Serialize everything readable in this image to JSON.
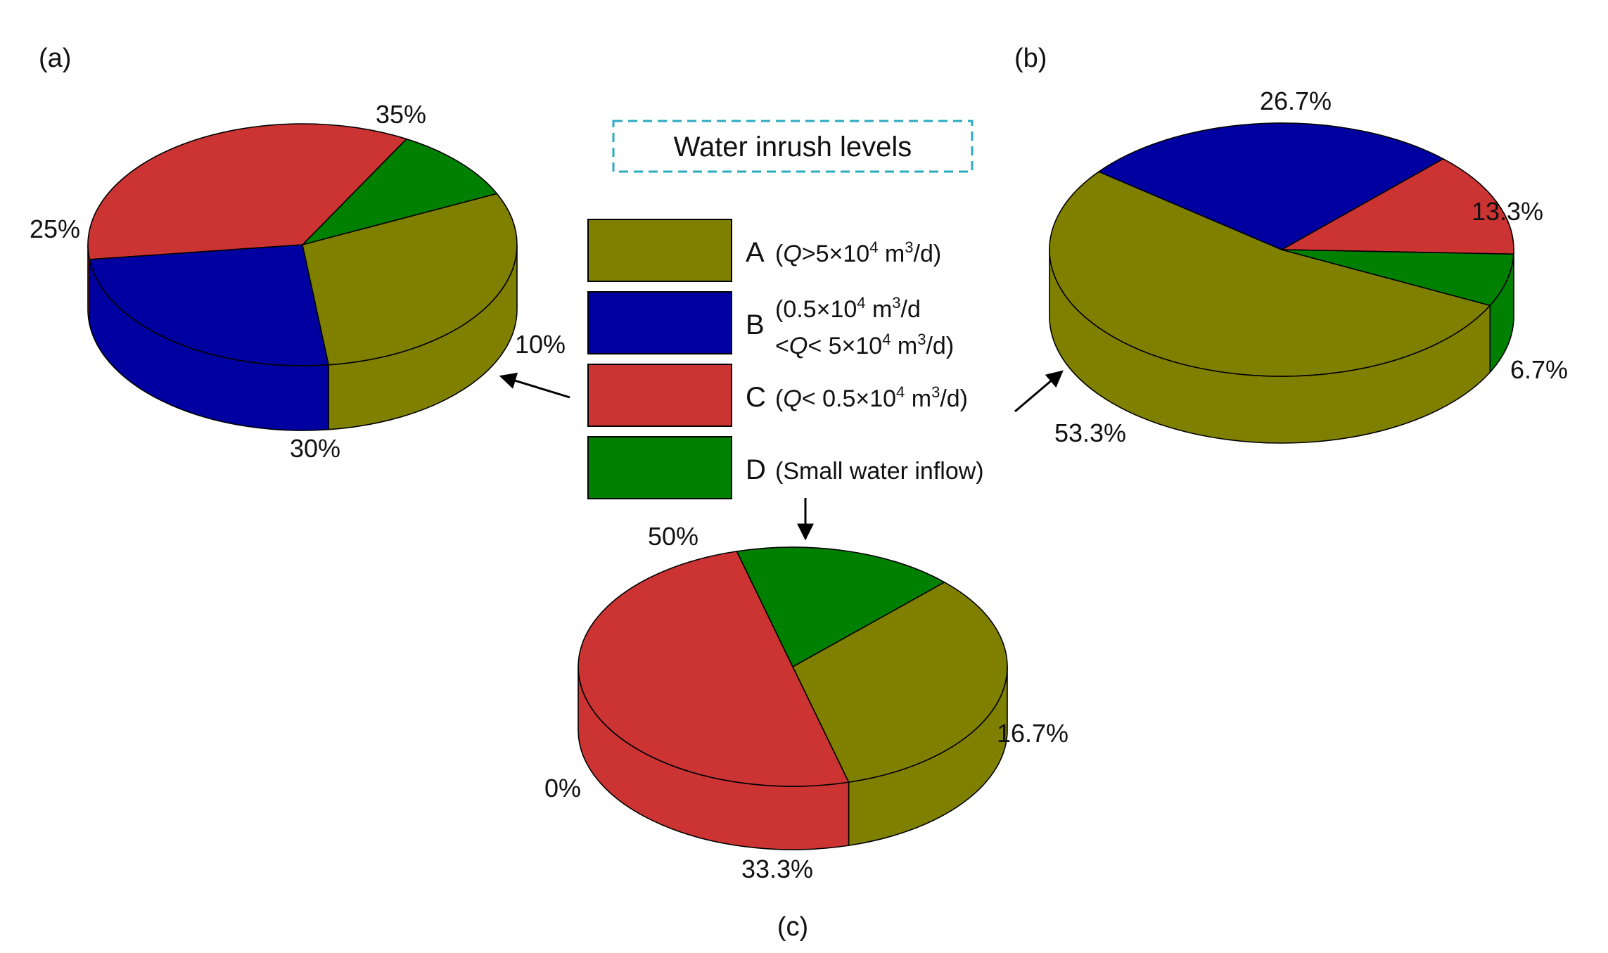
{
  "legend": {
    "title": "Water inrush levels",
    "items": [
      {
        "key": "A",
        "lines": [
          [
            "(",
            {
              "i": "Q"
            },
            ">5×10",
            {
              "sup": "4"
            },
            " m",
            {
              "sup": "3"
            },
            "/d)"
          ]
        ],
        "color": "#808000"
      },
      {
        "key": "B",
        "lines": [
          [
            "(0.5×10",
            {
              "sup": "4"
            },
            " m",
            {
              "sup": "3"
            },
            "/d"
          ],
          [
            "<",
            {
              "i": "Q"
            },
            "< 5×10",
            {
              "sup": "4"
            },
            " m",
            {
              "sup": "3"
            },
            "/d)"
          ]
        ],
        "color": "#0000A0"
      },
      {
        "key": "C",
        "lines": [
          [
            "(",
            {
              "i": "Q"
            },
            "< 0.5×10",
            {
              "sup": "4"
            },
            " m",
            {
              "sup": "3"
            },
            "/d)"
          ]
        ],
        "color": "#CC3333"
      },
      {
        "key": "D",
        "lines": [
          [
            "(Small water inflow)"
          ]
        ],
        "color": "#008000"
      }
    ]
  },
  "chart_data": [
    {
      "type": "pie",
      "panel": "(a)",
      "slices": [
        {
          "category": "A",
          "value": 30,
          "label": "30%"
        },
        {
          "category": "B",
          "value": 25,
          "label": "25%"
        },
        {
          "category": "C",
          "value": 35,
          "label": "35%"
        },
        {
          "category": "D",
          "value": 10,
          "label": "10%"
        }
      ]
    },
    {
      "type": "pie",
      "panel": "(b)",
      "slices": [
        {
          "category": "A",
          "value": 53.3,
          "label": "53.3%"
        },
        {
          "category": "B",
          "value": 26.7,
          "label": "26.7%"
        },
        {
          "category": "C",
          "value": 13.3,
          "label": "13.3%"
        },
        {
          "category": "D",
          "value": 6.7,
          "label": "6.7%"
        }
      ]
    },
    {
      "type": "pie",
      "panel": "(c)",
      "slices": [
        {
          "category": "A",
          "value": 33.3,
          "label": "33.3%"
        },
        {
          "category": "B",
          "value": 0,
          "label": "0%"
        },
        {
          "category": "C",
          "value": 50,
          "label": "50%"
        },
        {
          "category": "D",
          "value": 16.7,
          "label": "16.7%"
        }
      ]
    }
  ]
}
